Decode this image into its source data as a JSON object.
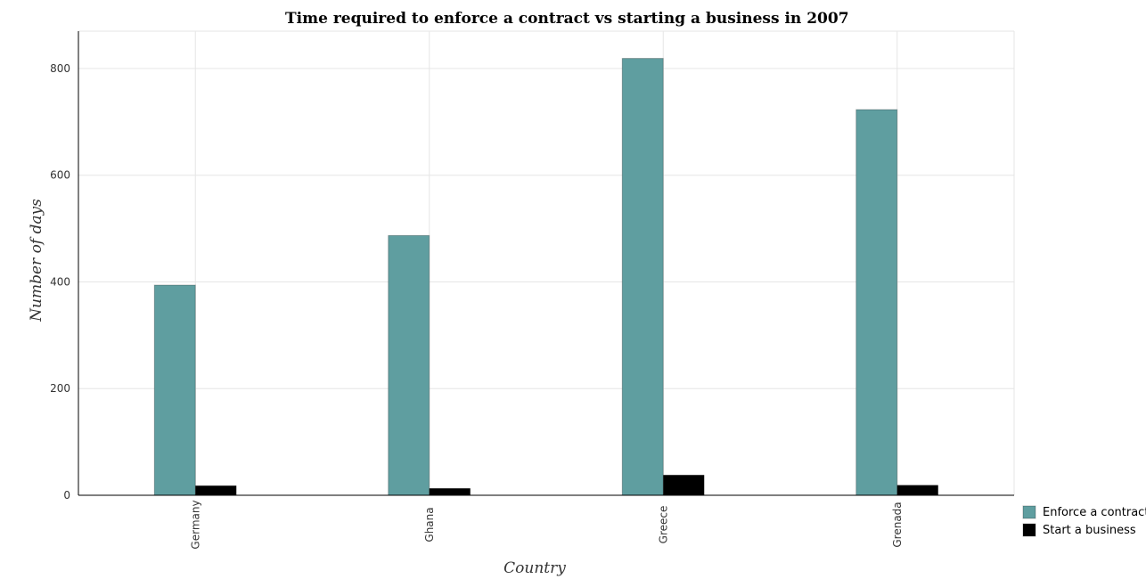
{
  "chart_data": {
    "type": "bar",
    "title": "Time required to enforce a contract vs starting a business in 2007",
    "xlabel": "Country",
    "ylabel": "Number of days",
    "categories": [
      "Germany",
      "Ghana",
      "Greece",
      "Grenada"
    ],
    "series": [
      {
        "name": "Enforce a contract",
        "values": [
          394,
          487,
          819,
          723
        ],
        "color": "#5f9ea0"
      },
      {
        "name": "Start a business",
        "values": [
          18,
          13,
          38,
          19
        ],
        "color": "#000000"
      }
    ],
    "ylim": [
      0,
      870
    ],
    "yticks": [
      0,
      200,
      400,
      600,
      800
    ],
    "grid": true,
    "legend_position": "bottom-right"
  }
}
